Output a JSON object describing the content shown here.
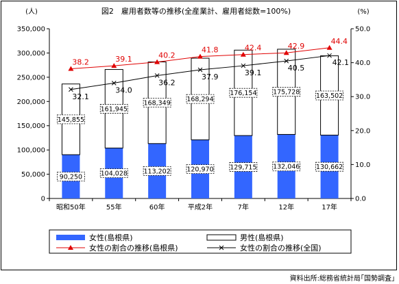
{
  "chart_data": {
    "type": "bar",
    "title": "図2　雇用者数等の推移(全産業計、雇用者総数=100%)",
    "left_unit": "(人)",
    "right_unit": "(%)",
    "categories": [
      "昭和50年",
      "55年",
      "60年",
      "平成2年",
      "7年",
      "12年",
      "17年"
    ],
    "left_ylim": [
      0,
      350000
    ],
    "left_ticks": [
      "0",
      "50,000",
      "100,000",
      "150,000",
      "200,000",
      "250,000",
      "300,000",
      "350,000"
    ],
    "right_ylim": [
      0,
      50
    ],
    "right_ticks": [
      "0.0",
      "10.0",
      "20.0",
      "30.0",
      "40.0",
      "50.0"
    ],
    "stacked": true,
    "series": [
      {
        "name": "女性(島根県)",
        "kind": "bar",
        "axis": "left",
        "color": "#3366ff",
        "values": [
          90250,
          104028,
          113202,
          120970,
          129715,
          132046,
          130662
        ],
        "labels": [
          "90,250",
          "104,028",
          "113,202",
          "120,970",
          "129,715",
          "132,046",
          "130,662"
        ]
      },
      {
        "name": "男性(島根県)",
        "kind": "bar",
        "axis": "left",
        "color": "#ffffff",
        "values": [
          145855,
          161945,
          168349,
          168294,
          176154,
          175728,
          163502
        ],
        "labels": [
          "145,855",
          "161,945",
          "168,349",
          "168,294",
          "176,154",
          "175,728",
          "163,502"
        ]
      },
      {
        "name": "女性の割合の推移(島根県)",
        "kind": "line",
        "axis": "right",
        "color": "#e00000",
        "marker": "triangle",
        "values": [
          38.2,
          39.1,
          40.2,
          41.8,
          42.4,
          42.9,
          44.4
        ],
        "labels": [
          "38.2",
          "39.1",
          "40.2",
          "41.8",
          "42.4",
          "42.9",
          "44.4"
        ]
      },
      {
        "name": "女性の割合の推移(全国)",
        "kind": "line",
        "axis": "right",
        "color": "#000000",
        "marker": "x",
        "values": [
          32.1,
          34.0,
          36.2,
          37.9,
          39.1,
          40.5,
          42.1
        ],
        "labels": [
          "32.1",
          "34.0",
          "36.2",
          "37.9",
          "39.1",
          "40.5",
          "42.1"
        ]
      }
    ],
    "grid": false,
    "legend": "bottom",
    "source": "資料出所:総務省統計局｢国勢調査｣"
  }
}
